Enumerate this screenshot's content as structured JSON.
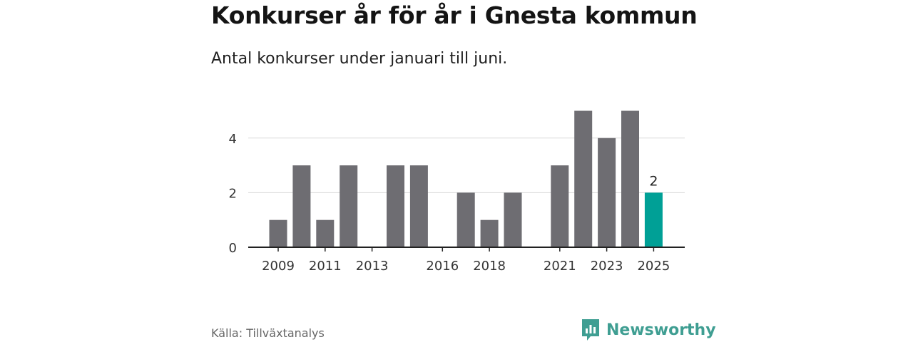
{
  "header": {
    "title": "Konkurser år för år i Gnesta kommun",
    "subtitle": "Antal konkurser under januari till juni."
  },
  "footer": {
    "source": "Källa: Tillväxtanalys",
    "brand": "Newsworthy",
    "brand_icon": "newsworthy-logo-icon"
  },
  "colors": {
    "bar": "#6e6d72",
    "highlight": "#00a096",
    "grid": "#d9d9d9",
    "axis": "#222222",
    "brand": "#3f9e92"
  },
  "chart_data": {
    "type": "bar",
    "title": "Konkurser år för år i Gnesta kommun",
    "subtitle": "Antal konkurser under januari till juni.",
    "categories": [
      "2009",
      "2010",
      "2011",
      "2012",
      "2013",
      "2014",
      "2015",
      "2016",
      "2017",
      "2018",
      "2019",
      "2020",
      "2021",
      "2022",
      "2023",
      "2024",
      "2025"
    ],
    "values": [
      1,
      3,
      1,
      3,
      0,
      3,
      3,
      0,
      2,
      1,
      2,
      0,
      3,
      5,
      4,
      5,
      2
    ],
    "x_tick_labels": [
      "2009",
      "2011",
      "2013",
      "2016",
      "2018",
      "2021",
      "2023",
      "2025"
    ],
    "y_ticks": [
      0,
      2,
      4
    ],
    "ylim": [
      0,
      5
    ],
    "highlight_category": "2025",
    "data_labels": [
      {
        "category": "2025",
        "text": "2"
      }
    ],
    "grid": true,
    "legend": "none",
    "xlabel": "",
    "ylabel": ""
  }
}
